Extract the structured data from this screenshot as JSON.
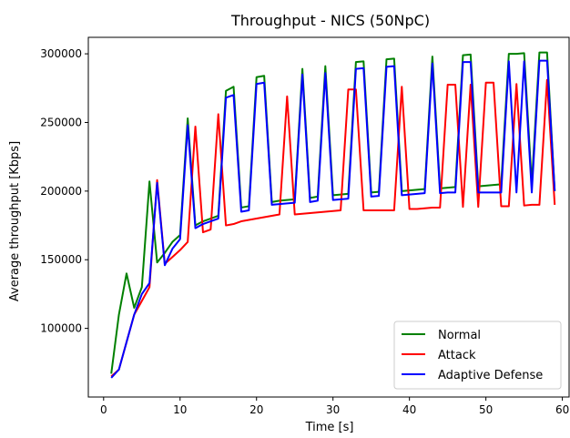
{
  "chart_data": {
    "type": "line",
    "title": "Throughput - NICS (50NpC)",
    "xlabel": "Time [s]",
    "ylabel": "Average throughput [Kbps]",
    "xlim": [
      -2,
      61
    ],
    "ylim": [
      50000,
      312000
    ],
    "xticks": [
      0,
      10,
      20,
      30,
      40,
      50,
      60
    ],
    "yticks": [
      100000,
      150000,
      200000,
      250000,
      300000
    ],
    "grid": false,
    "legend_position": "lower-right",
    "x": [
      1,
      2,
      3,
      4,
      5,
      6,
      7,
      8,
      9,
      10,
      11,
      12,
      13,
      14,
      15,
      16,
      17,
      18,
      19,
      20,
      21,
      22,
      23,
      24,
      25,
      26,
      27,
      28,
      29,
      30,
      31,
      32,
      33,
      34,
      35,
      36,
      37,
      38,
      39,
      40,
      41,
      42,
      43,
      44,
      45,
      46,
      47,
      48,
      49,
      50,
      51,
      52,
      53,
      54,
      55,
      56,
      57,
      58,
      59
    ],
    "series": [
      {
        "name": "Normal",
        "color": "#008000",
        "values": [
          67000,
          110000,
          140000,
          115000,
          130000,
          207000,
          148000,
          155000,
          163000,
          168000,
          253000,
          175000,
          178000,
          180000,
          182000,
          273000,
          276000,
          188000,
          189000,
          283000,
          284000,
          192000,
          193000,
          193500,
          194000,
          289000,
          195000,
          196000,
          291000,
          197000,
          197500,
          198000,
          294000,
          294500,
          199000,
          199500,
          296000,
          296500,
          200000,
          200500,
          201000,
          201500,
          298000,
          202000,
          202500,
          203000,
          299000,
          299500,
          203500,
          204000,
          204500,
          205000,
          300000,
          300000,
          300500,
          205000,
          301000,
          301000,
          200000
        ]
      },
      {
        "name": "Attack",
        "color": "#ff0000",
        "values": [
          65000,
          70000,
          90000,
          110000,
          120000,
          130000,
          208000,
          147000,
          152000,
          157000,
          163000,
          247000,
          170000,
          172000,
          256000,
          175000,
          176000,
          178000,
          179000,
          180000,
          181000,
          182000,
          183000,
          269000,
          183000,
          183500,
          184000,
          184500,
          185000,
          185500,
          186000,
          274000,
          274000,
          186000,
          186000,
          186000,
          186000,
          186000,
          276000,
          187000,
          187000,
          187500,
          188000,
          188000,
          277500,
          277500,
          188500,
          277500,
          188500,
          279000,
          279000,
          189000,
          189000,
          278000,
          189500,
          190000,
          190000,
          281000,
          190000
        ]
      },
      {
        "name": "Adaptive Defense",
        "color": "#0000ff",
        "values": [
          64000,
          70000,
          90000,
          110000,
          125000,
          133000,
          206000,
          146000,
          158000,
          165000,
          248000,
          173000,
          176000,
          178000,
          180000,
          268000,
          270000,
          185000,
          186000,
          278000,
          279000,
          190000,
          190500,
          191000,
          191500,
          285000,
          192000,
          193000,
          286000,
          193500,
          194000,
          194500,
          289000,
          289500,
          196000,
          196500,
          290500,
          291000,
          197000,
          197500,
          198000,
          198500,
          293000,
          198500,
          199000,
          199000,
          294000,
          294000,
          199000,
          199000,
          199000,
          199000,
          294500,
          199000,
          294500,
          199000,
          295000,
          295000,
          200000
        ]
      }
    ]
  }
}
